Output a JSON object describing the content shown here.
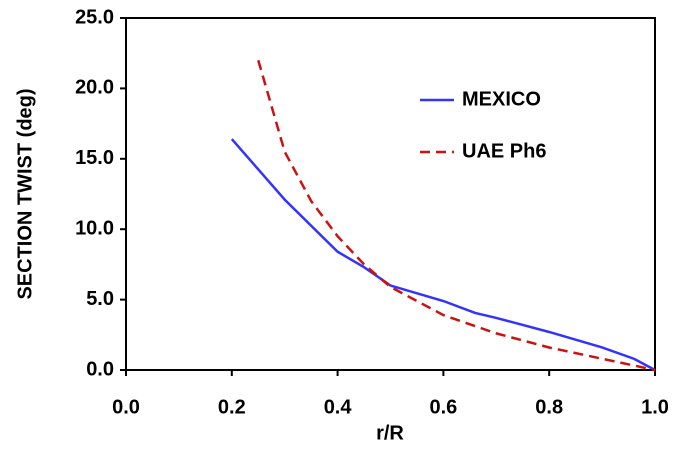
{
  "chart_data": {
    "type": "line",
    "xlabel": "r/R",
    "ylabel": "SECTION TWIST (deg)",
    "xlim": [
      0,
      1
    ],
    "ylim": [
      0,
      25
    ],
    "xticks": [
      {
        "value": 0,
        "label": "0.0"
      },
      {
        "value": 0.2,
        "label": "0.2"
      },
      {
        "value": 0.4,
        "label": "0.4"
      },
      {
        "value": 0.6,
        "label": "0.6"
      },
      {
        "value": 0.8,
        "label": "0.8"
      },
      {
        "value": 1,
        "label": "1.0"
      }
    ],
    "yticks": [
      {
        "value": 0,
        "label": "0.0"
      },
      {
        "value": 5,
        "label": "5.0"
      },
      {
        "value": 10,
        "label": "10.0"
      },
      {
        "value": 15,
        "label": "15.0"
      },
      {
        "value": 20,
        "label": "20.0"
      },
      {
        "value": 25,
        "label": "25.0"
      }
    ],
    "grid": false,
    "legend": "upper right",
    "series": [
      {
        "name": "MEXICO",
        "color": "#3333ff",
        "dash": "solid",
        "x": [
          0.2,
          0.3,
          0.4,
          0.45,
          0.5,
          0.6,
          0.66,
          0.7,
          0.8,
          0.9,
          0.96,
          1.0
        ],
        "values": [
          16.4,
          12.1,
          8.4,
          7.3,
          6.0,
          4.9,
          4.05,
          3.7,
          2.7,
          1.6,
          0.8,
          0
        ]
      },
      {
        "name": "UAE Ph6",
        "color": "#cc1111",
        "dash": "dashed",
        "x": [
          0.25,
          0.3,
          0.35,
          0.4,
          0.45,
          0.5,
          0.6,
          0.7,
          0.8,
          0.9,
          1.0
        ],
        "values": [
          22.0,
          15.5,
          12.0,
          9.5,
          7.5,
          5.9,
          3.9,
          2.6,
          1.6,
          0.8,
          0
        ]
      }
    ]
  }
}
